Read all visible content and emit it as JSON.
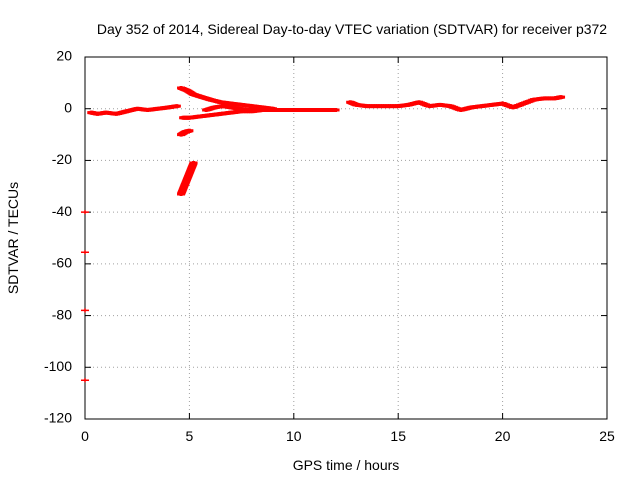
{
  "chart_data": {
    "type": "scatter",
    "title": "Day 352 of 2014, Sidereal Day-to-day VTEC variation (SDTVAR) for receiver p372",
    "xlabel": "GPS time / hours",
    "ylabel": "SDTVAR / TECUs",
    "xlim": [
      0,
      25
    ],
    "ylim": [
      -120,
      20
    ],
    "xticks": [
      0,
      5,
      10,
      15,
      20,
      25
    ],
    "yticks": [
      -120,
      -100,
      -80,
      -60,
      -40,
      -20,
      0,
      20
    ],
    "grid": true,
    "marker": "plus",
    "series_color": "#ff0000",
    "segments": [
      {
        "name": "main-arc-1",
        "x": [
          0.3,
          0.6,
          1.0,
          1.5,
          2.0,
          2.5,
          3.0,
          3.5,
          4.0,
          4.4
        ],
        "y": [
          -1.5,
          -2.0,
          -1.5,
          -2.0,
          -1.0,
          0.0,
          -0.5,
          0.0,
          0.5,
          1.0
        ]
      },
      {
        "name": "upper-descending",
        "x": [
          4.6,
          4.9,
          5.2,
          5.6,
          6.0,
          6.5,
          7.0,
          7.5,
          8.0,
          8.5,
          9.0
        ],
        "y": [
          8.0,
          7.0,
          5.5,
          4.5,
          3.5,
          2.5,
          2.0,
          1.5,
          1.0,
          0.5,
          0.0
        ]
      },
      {
        "name": "lower-rising",
        "x": [
          4.7,
          5.0,
          5.5,
          6.0,
          6.5,
          7.0,
          7.5,
          8.0,
          8.5,
          9.0,
          9.5,
          10.0,
          10.5,
          11.0,
          11.5,
          12.0
        ],
        "y": [
          -3.5,
          -3.5,
          -3.0,
          -2.5,
          -2.0,
          -1.5,
          -1.0,
          -1.0,
          -0.5,
          -0.5,
          -0.5,
          -0.5,
          -0.5,
          -0.5,
          -0.5,
          -0.5
        ]
      },
      {
        "name": "middle-branch",
        "x": [
          5.8,
          6.2,
          6.6,
          7.0,
          7.4,
          7.8,
          8.2
        ],
        "y": [
          -0.5,
          0.5,
          1.0,
          0.5,
          0.0,
          -0.5,
          0.0
        ]
      },
      {
        "name": "short-branch",
        "x": [
          4.6,
          4.8,
          5.0
        ],
        "y": [
          -10.0,
          -9.0,
          -8.5
        ]
      },
      {
        "name": "steep-drop",
        "x": [
          4.6,
          4.7,
          4.8,
          4.9,
          5.0,
          5.1,
          5.2
        ],
        "y": [
          -33.0,
          -31.0,
          -29.0,
          -27.0,
          -25.0,
          -23.0,
          -21.0
        ]
      },
      {
        "name": "main-arc-2",
        "x": [
          12.7,
          13.0,
          13.5,
          14.0,
          14.5,
          15.0,
          15.5,
          16.0,
          16.5,
          17.0,
          17.5,
          18.0,
          18.5,
          19.0,
          19.5,
          20.0,
          20.5,
          21.0,
          21.5,
          22.0,
          22.5,
          22.8
        ],
        "y": [
          2.5,
          1.5,
          1.0,
          1.0,
          1.0,
          1.0,
          1.5,
          2.5,
          1.0,
          1.5,
          1.0,
          -0.5,
          0.5,
          1.0,
          1.5,
          2.0,
          0.5,
          2.0,
          3.5,
          4.0,
          4.0,
          4.5
        ]
      },
      {
        "name": "outliers-at-zero",
        "x": [
          0.0,
          0.0,
          0.0,
          0.0
        ],
        "y": [
          -40.0,
          -55.5,
          -78.0,
          -105.0
        ]
      }
    ]
  }
}
